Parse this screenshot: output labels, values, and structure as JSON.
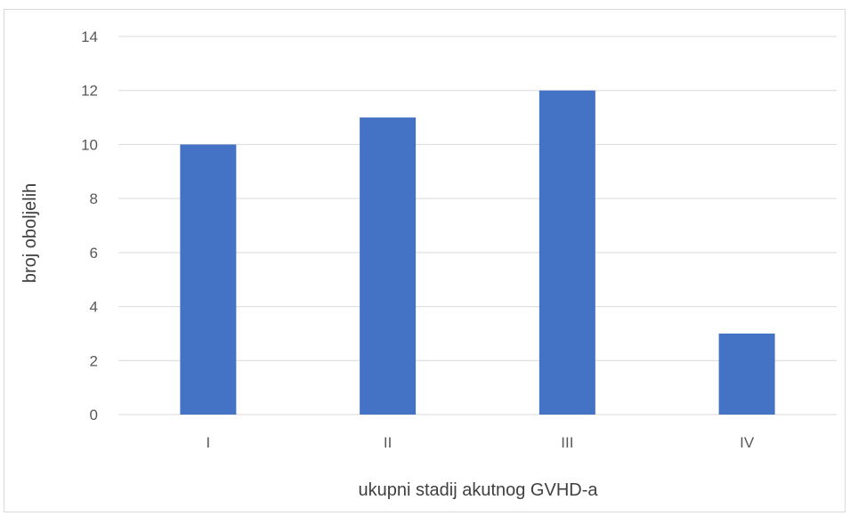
{
  "chart_data": {
    "type": "bar",
    "categories": [
      "I",
      "II",
      "III",
      "IV"
    ],
    "values": [
      10,
      11,
      12,
      3
    ],
    "xlabel": "ukupni stadij akutnog GVHD-a",
    "ylabel": "broj oboljelih",
    "ylim": [
      0,
      14
    ],
    "yticks": [
      0,
      2,
      4,
      6,
      8,
      10,
      12,
      14
    ],
    "grid": true,
    "legend": "none",
    "bar_color": "#4472c4",
    "grid_color": "#d9d9d9"
  }
}
